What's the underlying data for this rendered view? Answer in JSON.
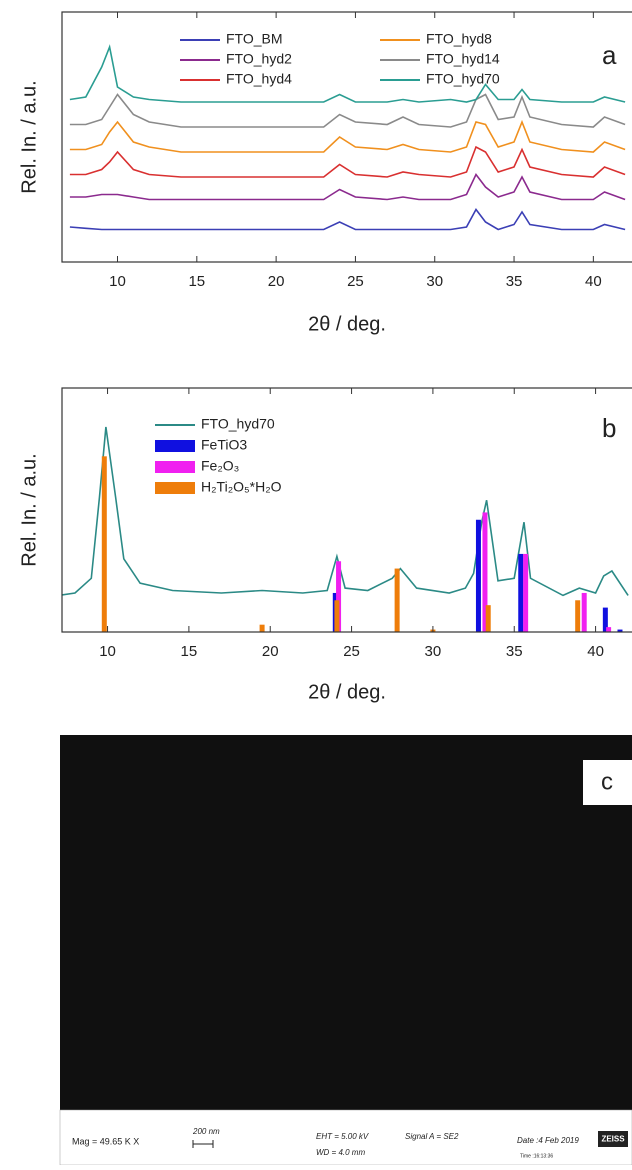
{
  "chart_data": [
    {
      "type": "line",
      "annotation": "a",
      "ylabel": "Rel. In. / a.u.",
      "xlabel": "2θ / deg.",
      "xlim": [
        6.5,
        42.5
      ],
      "xticks": [
        10,
        15,
        20,
        25,
        30,
        35,
        40
      ],
      "ylim": [
        0,
        100
      ],
      "x": [
        7,
        8,
        9,
        9.5,
        10,
        11,
        12,
        14,
        17,
        20,
        23,
        24,
        25,
        27,
        28,
        29,
        31,
        32,
        32.6,
        33.2,
        34,
        35,
        35.5,
        36,
        38,
        40,
        40.7,
        42
      ],
      "series": [
        {
          "name": "FTO_BM",
          "color": "#3b3fb5",
          "values": [
            14,
            13.5,
            13,
            13,
            13,
            13,
            13,
            13,
            13,
            13,
            13,
            16,
            13,
            13,
            13,
            13,
            13,
            14,
            21,
            16,
            13,
            15,
            20,
            15,
            13,
            13,
            15,
            13
          ]
        },
        {
          "name": "FTO_hyd2",
          "color": "#8b2a8e",
          "values": [
            26,
            26,
            27,
            27,
            27,
            26,
            25,
            25,
            25,
            25,
            25,
            29,
            26,
            25,
            26,
            25,
            25,
            27,
            35,
            30,
            26,
            28,
            34,
            28,
            25,
            25,
            28,
            25
          ]
        },
        {
          "name": "FTO_hyd4",
          "color": "#d93030",
          "values": [
            35,
            35,
            37,
            40,
            44,
            37,
            35,
            34,
            34,
            34,
            34,
            39,
            35,
            34,
            36,
            35,
            34,
            36,
            46,
            44,
            36,
            38,
            45,
            38,
            35,
            34,
            38,
            35
          ]
        },
        {
          "name": "FTO_hyd8",
          "color": "#f0901e",
          "values": [
            45,
            45,
            47,
            52,
            56,
            48,
            46,
            44,
            44,
            44,
            44,
            50,
            46,
            45,
            47,
            45,
            44,
            46,
            56,
            55,
            46,
            48,
            56,
            48,
            45,
            44,
            48,
            45
          ]
        },
        {
          "name": "FTO_hyd14",
          "color": "#8a8a8a",
          "values": [
            55,
            55,
            57,
            62,
            67,
            59,
            56,
            54,
            54,
            54,
            54,
            59,
            56,
            55,
            58,
            55,
            54,
            56,
            65,
            67,
            57,
            58,
            66,
            58,
            55,
            54,
            58,
            55
          ]
        },
        {
          "name": "FTO_hyd70",
          "color": "#2a9d92",
          "values": [
            65,
            66,
            78,
            86,
            70,
            66,
            65,
            64,
            64,
            64,
            64,
            67,
            64,
            64,
            65,
            64,
            65,
            64,
            65,
            71,
            65,
            65,
            69,
            65,
            64,
            64,
            66,
            64
          ]
        }
      ]
    },
    {
      "type": "line",
      "annotation": "b",
      "ylabel": "Rel. In. / a.u.",
      "xlabel": "2θ / deg.",
      "xlim": [
        7.2,
        42.3
      ],
      "xticks": [
        10,
        15,
        20,
        25,
        30,
        35,
        40
      ],
      "ylim": [
        0,
        100
      ],
      "x": [
        7,
        8,
        9,
        9.5,
        9.9,
        10.5,
        11,
        12,
        14,
        17,
        19.5,
        22,
        23.5,
        24.1,
        24.6,
        26,
        27.5,
        28,
        29,
        31,
        32,
        32.5,
        33,
        33.3,
        34,
        35,
        35.6,
        36,
        38,
        39,
        40,
        40.5,
        41,
        42
      ],
      "series": [
        {
          "name": "FTO_hyd70",
          "color": "#2b8a86",
          "values": [
            15,
            16,
            22,
            55,
            84,
            55,
            30,
            20,
            17,
            16,
            17,
            16,
            17,
            31,
            18,
            17,
            22,
            26,
            18,
            16,
            18,
            24,
            45,
            54,
            21,
            22,
            45,
            22,
            15,
            18,
            16,
            23,
            25,
            15
          ]
        },
        {
          "name": "FeTiO3",
          "color": "#1010e0",
          "kind": "bar",
          "x": [
            24,
            32.8,
            35.4,
            40.6,
            41.5
          ],
          "values": [
            16,
            46,
            32,
            10,
            1
          ]
        },
        {
          "name": "Fe₂O₃",
          "color": "#f020f0",
          "kind": "bar",
          "x": [
            24.2,
            33.2,
            35.7,
            39.3,
            40.8
          ],
          "values": [
            29,
            49,
            32,
            16,
            2
          ]
        },
        {
          "name": "H₂Ti₂O₅*H₂O",
          "color": "#ee7d0a",
          "kind": "bar",
          "x": [
            9.8,
            19.5,
            24.1,
            27.8,
            30,
            33.4,
            38.9
          ],
          "values": [
            72,
            3,
            13,
            26,
            1,
            11,
            13
          ]
        }
      ]
    }
  ],
  "sem_image": {
    "annotation": "c",
    "mag": "Mag =  49.65 K X",
    "scale": "200 nm",
    "eht": "EHT =  5.00 kV",
    "wd": "WD =  4.0 mm",
    "signal": "Signal A = SE2",
    "date": "Date :4 Feb 2019",
    "brand": "ZEISS",
    "time": "Time :16:13:36"
  }
}
